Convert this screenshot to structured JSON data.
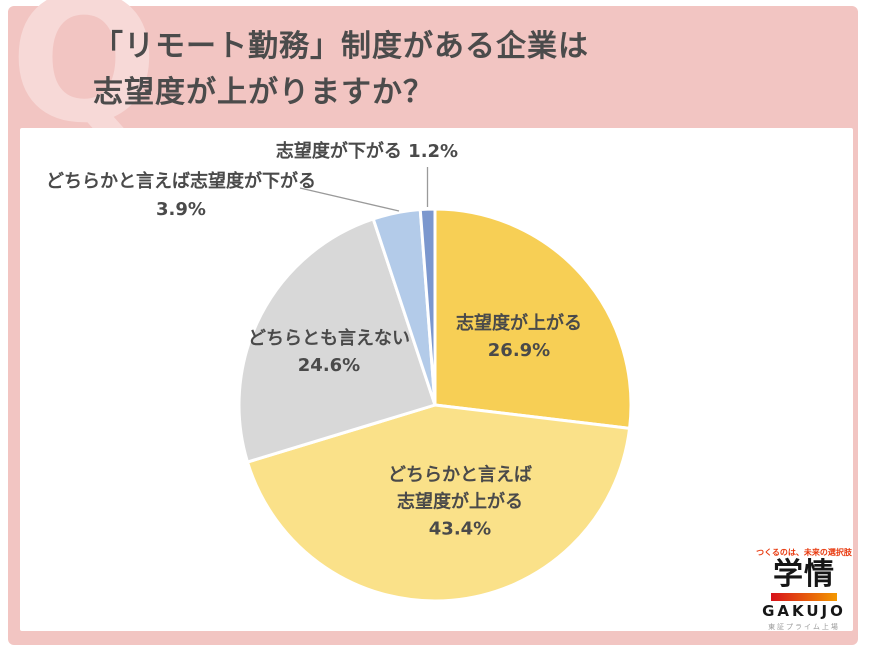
{
  "header": {
    "watermark": "Q",
    "title_line1": "「リモート勤務」制度がある企業は",
    "title_line2": "志望度が上がりますか？"
  },
  "chart_data": {
    "type": "pie",
    "title": "「リモート勤務」制度がある企業は志望度が上がりますか？",
    "unit": "%",
    "start_angle_deg": 0,
    "direction": "clockwise",
    "legend_position": "none",
    "slices": [
      {
        "label": "志望度が上がる",
        "value": 26.9,
        "color": "#F7CF55",
        "label_position": "inside"
      },
      {
        "label": "どちらかと言えば志望度が上がる",
        "value": 43.4,
        "color": "#FAE189",
        "label_position": "inside"
      },
      {
        "label": "どちらとも言えない",
        "value": 24.6,
        "color": "#D8D8D8",
        "label_position": "inside"
      },
      {
        "label": "どちらかと言えば志望度が下がる",
        "value": 3.9,
        "color": "#B3CBE9",
        "label_position": "outside"
      },
      {
        "label": "志望度が下がる",
        "value": 1.2,
        "color": "#7B97CE",
        "label_position": "outside"
      }
    ]
  },
  "labels": {
    "up_line1": "志望度が上がる",
    "up_line2": "26.9%",
    "somewhat_up_line1": "どちらかと言えば",
    "somewhat_up_line2": "志望度が上がる",
    "somewhat_up_line3": "43.4%",
    "neutral_line1": "どちらとも言えない",
    "neutral_line2": "24.6%",
    "somewhat_down_line1": "どちらかと言えば志望度が下がる",
    "somewhat_down_line2": "3.9%",
    "down": "志望度が下がる 1.2%"
  },
  "logo": {
    "tagline": "つくるのは、未来の選択肢",
    "name_jp": "学情",
    "name_en": "GAKUJO",
    "listing": "東証プライム上場"
  },
  "colors": {
    "frame_pink": "#F2C5C2",
    "watermark_pink": "#F7D9D7",
    "title_text": "#4B4B4B",
    "label_text": "#4A4A4A",
    "leader_line": "#9A9A9A",
    "logo_tagline": "#E8380D",
    "logo_red": "#D7121B",
    "logo_orange": "#F39800"
  }
}
